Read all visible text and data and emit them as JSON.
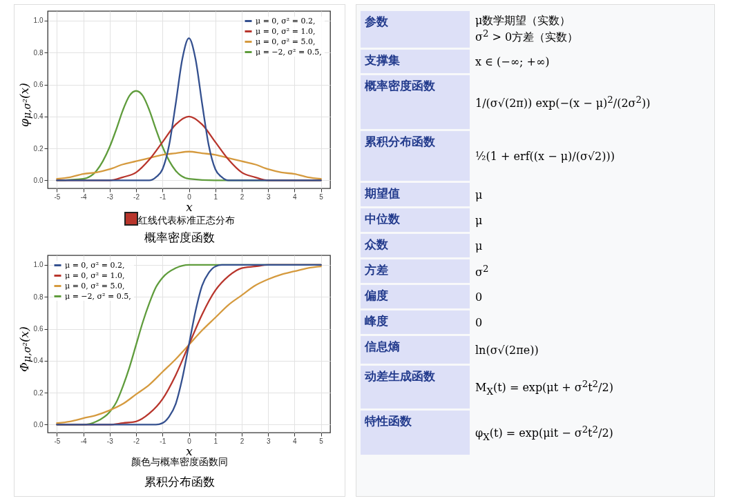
{
  "chart_data": [
    {
      "type": "line",
      "title": "概率密度函数",
      "xlabel": "x",
      "ylabel": "φ$_{μ,σ²}$(x)",
      "annotations": [
        "红线代表标准正态分布"
      ],
      "xlim": [
        -5.35,
        5.35
      ],
      "ylim": [
        -0.05,
        1.06
      ],
      "xticks": [
        -5,
        -4,
        -3,
        -2,
        -1,
        0,
        1,
        2,
        3,
        4,
        5
      ],
      "yticks": [
        {
          "value": 0,
          "label": "0.0"
        },
        {
          "value": 0.2,
          "label": "0.2"
        },
        {
          "value": 0.4,
          "label": "0.4"
        },
        {
          "value": 0.6,
          "label": "0.6"
        },
        {
          "value": 0.8,
          "label": "0.8"
        },
        {
          "value": 1,
          "label": "1.0"
        }
      ],
      "grid": true,
      "legend": "top right",
      "series": [
        {
          "name": "μ = 0,   σ² = 0.2,",
          "color": "#34508f",
          "x": [
            -5,
            -3,
            -2,
            -1.5,
            -1.25,
            -1,
            -0.75,
            -0.5,
            -0.25,
            0,
            0.25,
            0.5,
            0.75,
            1,
            1.25,
            1.5,
            2,
            3,
            5
          ],
          "values": [
            0,
            0,
            0,
            0,
            0.02,
            0.07,
            0.22,
            0.48,
            0.76,
            0.89,
            0.76,
            0.48,
            0.22,
            0.07,
            0.02,
            0,
            0,
            0,
            0
          ]
        },
        {
          "name": "μ = 0,   σ² = 1.0,",
          "color": "#b8352c",
          "x": [
            -5,
            -4,
            -3,
            -2.5,
            -2,
            -1.5,
            -1,
            -0.5,
            0,
            0.5,
            1,
            1.5,
            2,
            2.5,
            3,
            4,
            5
          ],
          "values": [
            0,
            0,
            0,
            0.02,
            0.05,
            0.13,
            0.24,
            0.35,
            0.4,
            0.35,
            0.24,
            0.13,
            0.05,
            0.02,
            0,
            0,
            0
          ]
        },
        {
          "name": "μ = 0,   σ² = 5.0,",
          "color": "#d59a3e",
          "x": [
            -5,
            -4.5,
            -4,
            -3.5,
            -3,
            -2.5,
            -2,
            -1.5,
            -1,
            -0.5,
            0,
            0.5,
            1,
            1.5,
            2,
            2.5,
            3,
            3.5,
            4,
            4.5,
            5
          ],
          "values": [
            0.01,
            0.02,
            0.04,
            0.05,
            0.07,
            0.1,
            0.12,
            0.14,
            0.16,
            0.17,
            0.18,
            0.17,
            0.16,
            0.14,
            0.12,
            0.1,
            0.07,
            0.05,
            0.04,
            0.02,
            0.01
          ]
        },
        {
          "name": "μ = −2,  σ² = 0.5,",
          "color": "#5f9c3c",
          "x": [
            -5,
            -4,
            -3.5,
            -3,
            -2.75,
            -2.5,
            -2.25,
            -2,
            -1.75,
            -1.5,
            -1.25,
            -1,
            -0.5,
            0,
            1,
            5
          ],
          "values": [
            0,
            0.01,
            0.06,
            0.21,
            0.32,
            0.44,
            0.53,
            0.56,
            0.53,
            0.44,
            0.32,
            0.21,
            0.06,
            0.01,
            0,
            0
          ]
        }
      ]
    },
    {
      "type": "line",
      "title": "累积分布函数",
      "xlabel": "x",
      "ylabel": "Φ$_{μ,σ²}$(x)",
      "annotations": [
        "颜色与概率密度函数同"
      ],
      "xlim": [
        -5.35,
        5.35
      ],
      "ylim": [
        -0.05,
        1.06
      ],
      "xticks": [
        -5,
        -4,
        -3,
        -2,
        -1,
        0,
        1,
        2,
        3,
        4,
        5
      ],
      "yticks": [
        {
          "value": 0,
          "label": "0.0"
        },
        {
          "value": 0.2,
          "label": "0.2"
        },
        {
          "value": 0.4,
          "label": "0.4"
        },
        {
          "value": 0.6,
          "label": "0.6"
        },
        {
          "value": 0.8,
          "label": "0.8"
        },
        {
          "value": 1,
          "label": "1.0"
        }
      ],
      "grid": true,
      "legend": "top left",
      "series": [
        {
          "name": "μ = 0,   σ² = 0.2,",
          "color": "#34508f",
          "x": [
            -5,
            -2,
            -1.5,
            -1.25,
            -1,
            -0.75,
            -0.5,
            -0.25,
            0,
            0.25,
            0.5,
            0.75,
            1,
            1.25,
            1.5,
            2,
            5
          ],
          "values": [
            0,
            0,
            0,
            0,
            0.01,
            0.05,
            0.13,
            0.29,
            0.5,
            0.71,
            0.87,
            0.95,
            0.99,
            1,
            1,
            1,
            1
          ]
        },
        {
          "name": "μ = 0,   σ² = 1.0,",
          "color": "#b8352c",
          "x": [
            -5,
            -3,
            -2.5,
            -2,
            -1.5,
            -1,
            -0.5,
            0,
            0.5,
            1,
            1.5,
            2,
            2.5,
            3,
            5
          ],
          "values": [
            0,
            0,
            0.01,
            0.02,
            0.07,
            0.16,
            0.31,
            0.5,
            0.69,
            0.84,
            0.93,
            0.98,
            0.99,
            1,
            1
          ]
        },
        {
          "name": "μ = 0,   σ² = 5.0,",
          "color": "#d59a3e",
          "x": [
            -5,
            -4.5,
            -4,
            -3.5,
            -3,
            -2.5,
            -2,
            -1.5,
            -1,
            -0.5,
            0,
            0.5,
            1,
            1.5,
            2,
            2.5,
            3,
            3.5,
            4,
            4.5,
            5
          ],
          "values": [
            0.01,
            0.02,
            0.04,
            0.06,
            0.09,
            0.13,
            0.19,
            0.25,
            0.33,
            0.41,
            0.5,
            0.59,
            0.67,
            0.75,
            0.81,
            0.87,
            0.91,
            0.94,
            0.96,
            0.98,
            0.99
          ]
        },
        {
          "name": "μ = −2,  σ² = 0.5,",
          "color": "#5f9c3c",
          "x": [
            -5,
            -4,
            -3.5,
            -3,
            -2.75,
            -2.5,
            -2.25,
            -2,
            -1.75,
            -1.5,
            -1.25,
            -1,
            -0.5,
            0,
            5
          ],
          "values": [
            0,
            0,
            0.02,
            0.08,
            0.14,
            0.24,
            0.36,
            0.5,
            0.64,
            0.76,
            0.86,
            0.92,
            0.98,
            1,
            1
          ]
        }
      ]
    },
    {
      "type": "other",
      "categories": [
        "参数",
        "支撑集",
        "概率密度函数",
        "累积分布函数",
        "期望值",
        "中位数",
        "众数",
        "方差",
        "偏度",
        "峰度",
        "信息熵",
        "动差生成函数",
        "特性函数"
      ],
      "cell_labels": [
        [
          "μ数学期望（实数）",
          "σ$^{2}$ > 0方差（实数）"
        ],
        [
          "x ∈ (−∞; +∞)"
        ],
        [
          "1/(σ√(2π)) exp(−(x − μ)$^{2}$/(2σ$^{2}$))"
        ],
        [
          "½(1 + erf((x − μ)/(σ√2)))"
        ],
        [
          "μ"
        ],
        [
          "μ"
        ],
        [
          "μ"
        ],
        [
          "σ$^{2}$"
        ],
        [
          "0"
        ],
        [
          "0"
        ],
        [
          "ln(σ√(2πe))"
        ],
        [
          "M$_{X}$(t) = exp(μt + σ$^{2}$t$^{2}$/2)"
        ],
        [
          "φ$_{X}$(t) = exp(μit − σ$^{2}$t$^{2}$/2)"
        ]
      ]
    }
  ]
}
